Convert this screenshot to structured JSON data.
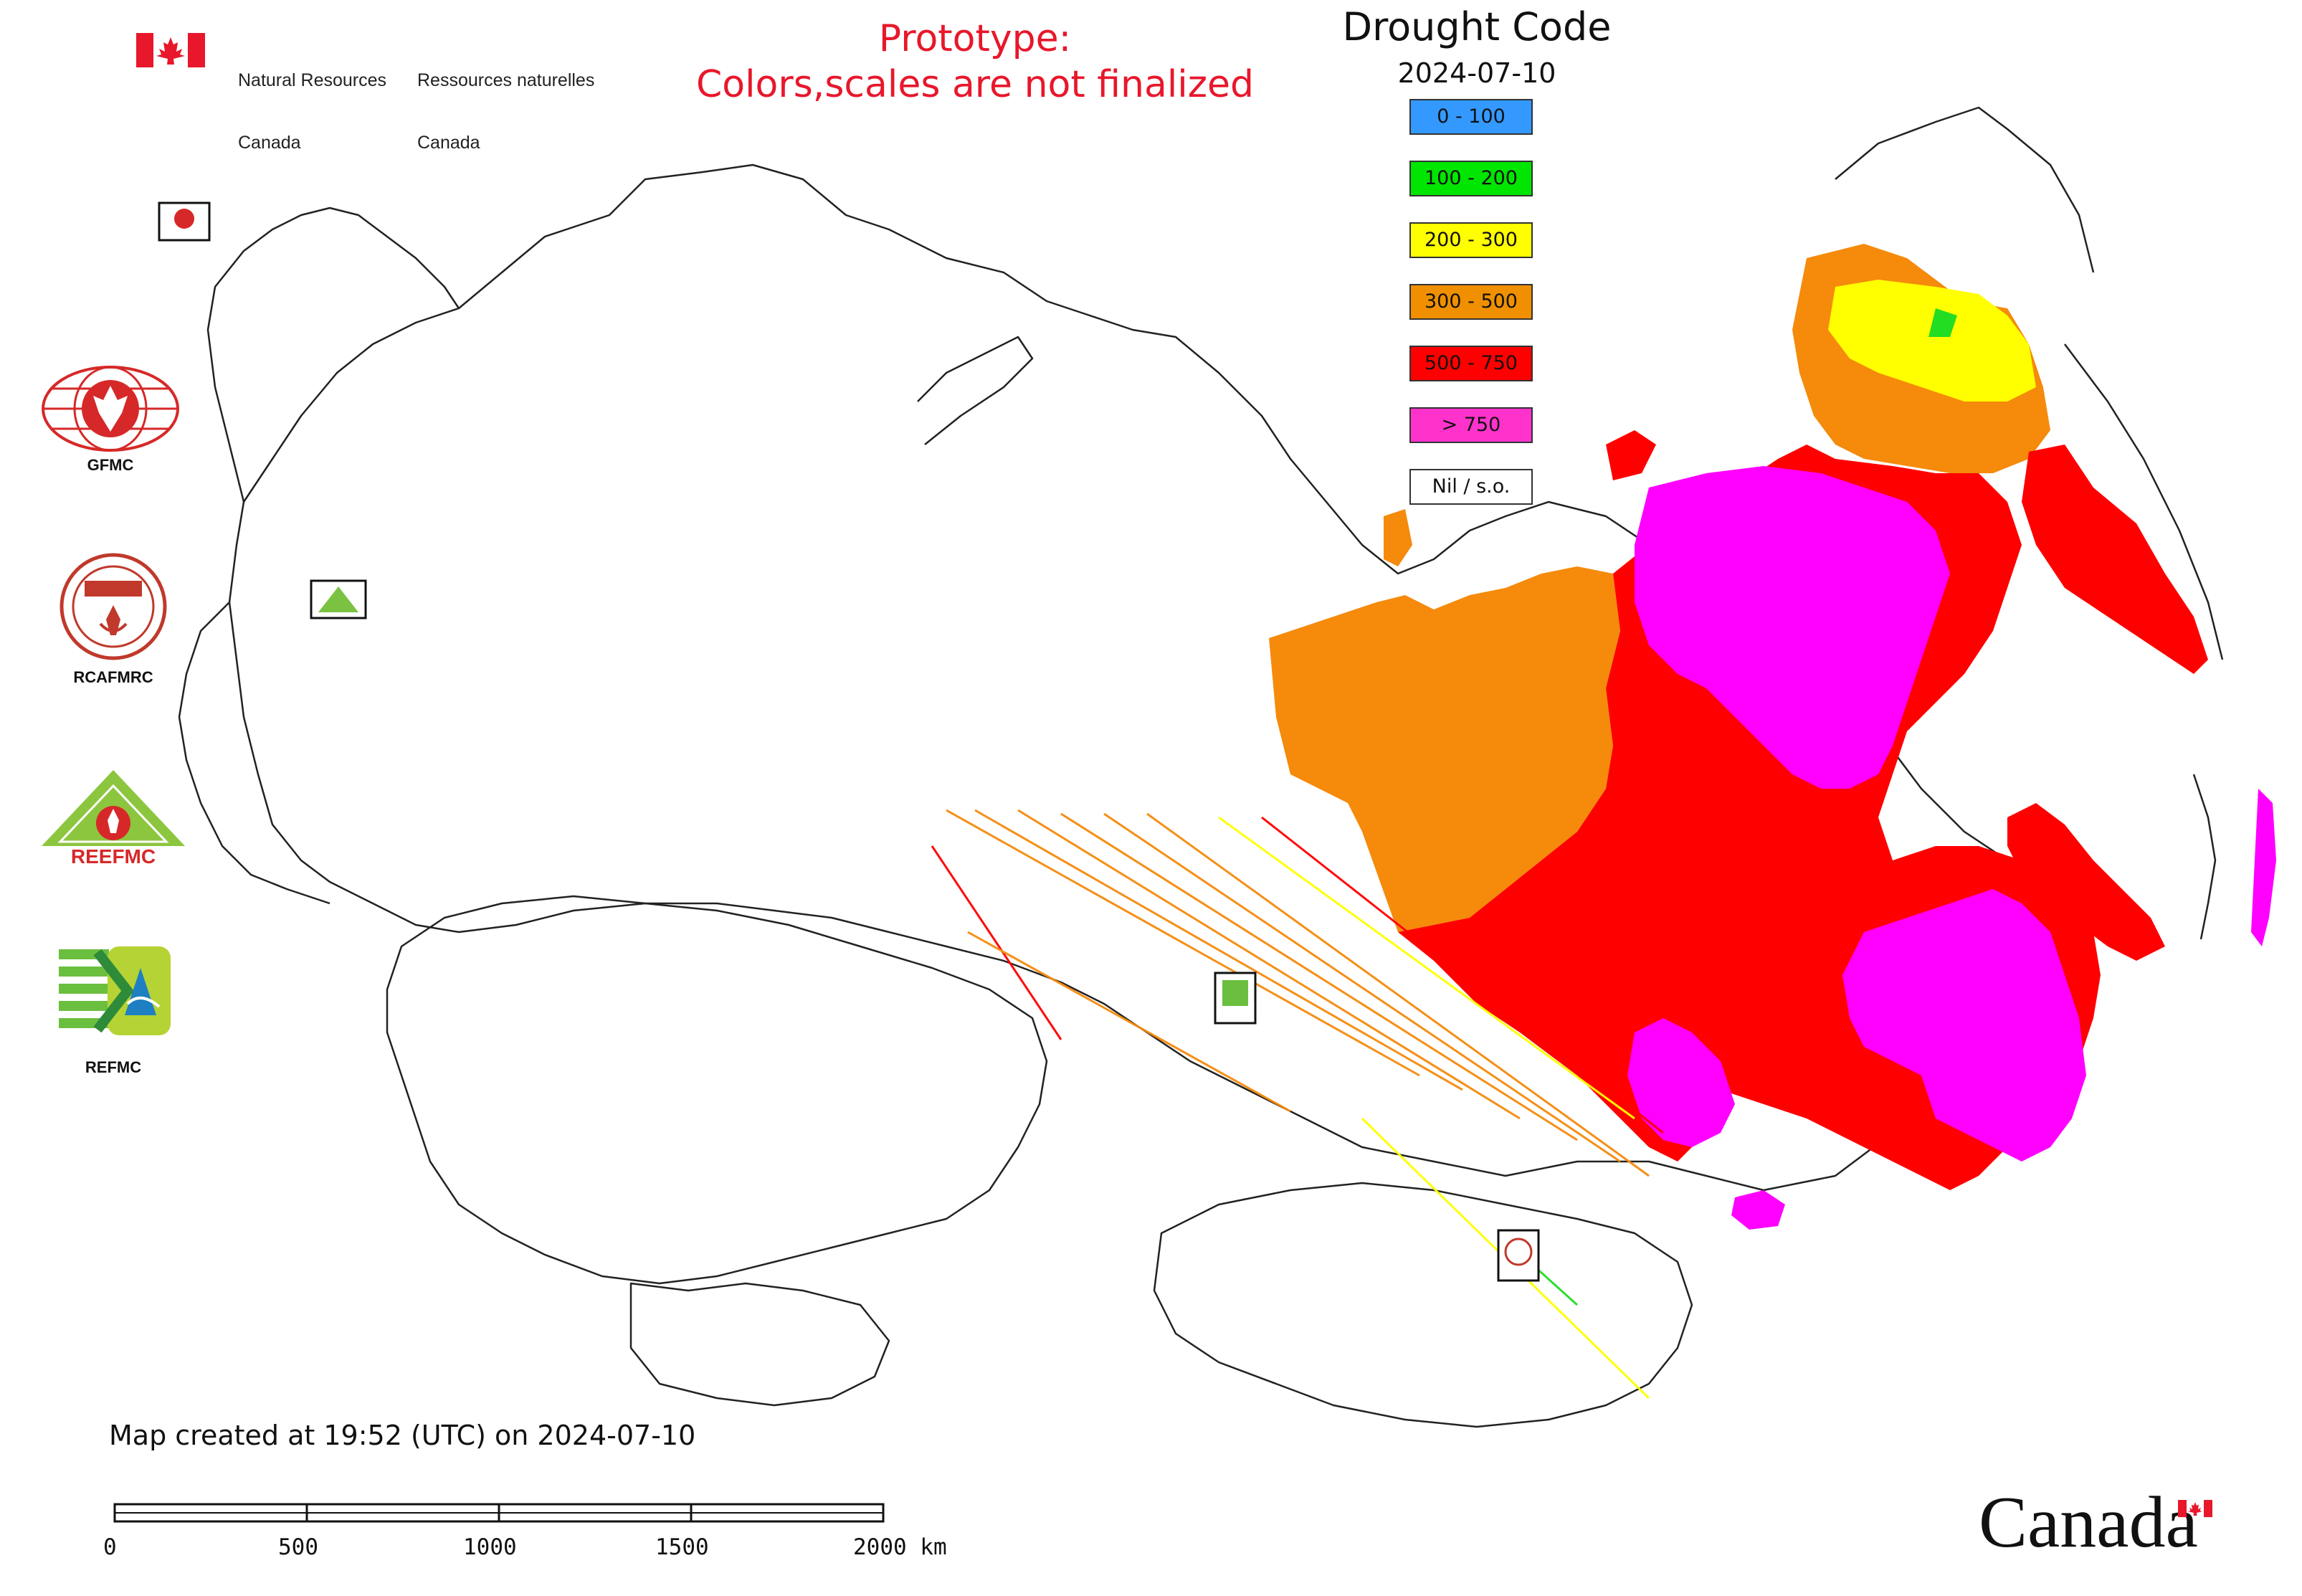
{
  "header": {
    "agency_en_line1": "Natural Resources",
    "agency_en_line2": "Canada",
    "agency_fr_line1": "Ressources naturelles",
    "agency_fr_line2": "Canada",
    "prototype_line1": "Prototype:",
    "prototype_line2": "Colors,scales are not finalized"
  },
  "legend": {
    "title": "Drought Code",
    "date": "2024-07-10",
    "items": [
      {
        "label": "0 - 100",
        "color": "#3399ff"
      },
      {
        "label": "100 - 200",
        "color": "#00e600"
      },
      {
        "label": "200 - 300",
        "color": "#ffff00"
      },
      {
        "label": "300 - 500",
        "color": "#f09000"
      },
      {
        "label": "500 - 750",
        "color": "#ff0000"
      },
      {
        "label": "> 750",
        "color": "#ff33cc"
      },
      {
        "label": "Nil / s.o.",
        "color": "#ffffff"
      }
    ]
  },
  "logos": {
    "gfmc": "GFMC",
    "rcafmrc": "RCAFMRC",
    "reefmc_label": "REEFMC",
    "refmc": "REFMC"
  },
  "footer": {
    "created": "Map created at 19:52 (UTC) on 2024-07-10",
    "scale_labels": [
      "0",
      "500",
      "1000",
      "1500",
      "2000 km"
    ],
    "wordmark": "Canada"
  },
  "map_colors": {
    "outline": "#222222",
    "dc_300_500": "#f58a0b",
    "dc_500_750": "#ff0000",
    "dc_750_plus": "#ff00ff",
    "dc_200_300": "#ffff00",
    "dc_100_200": "#22dd22"
  }
}
